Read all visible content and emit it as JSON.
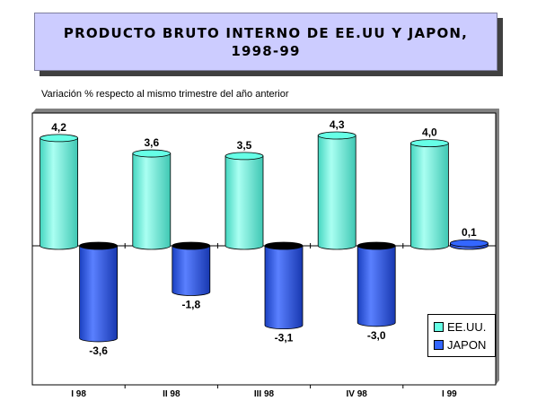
{
  "header": {
    "title_line1": "PRODUCTO BRUTO INTERNO DE EE.UU Y JAPON,",
    "title_line2": "1998-99",
    "subtitle": "Variación % respecto al mismo trimestre del año anterior"
  },
  "colors": {
    "series_1": "#66ffe6",
    "series_2": "#3366ff",
    "title_background": "#ccccff"
  },
  "legend": {
    "placement": "bottom-right",
    "items": [
      "EE.UU.",
      "JAPON"
    ]
  },
  "chart_data": {
    "type": "bar",
    "style": "3d-cylinder",
    "title": "PRODUCTO BRUTO INTERNO DE EE.UU Y JAPON, 1998-99",
    "subtitle": "Variación % respecto al mismo trimestre del año anterior",
    "categories": [
      "I 98",
      "II 98",
      "III 98",
      "IV 98",
      "I 99"
    ],
    "series": [
      {
        "name": "EE.UU.",
        "values": [
          4.2,
          3.6,
          3.5,
          4.3,
          4.0
        ],
        "labels": [
          "4,2",
          "3,6",
          "3,5",
          "4,3",
          "4,0"
        ]
      },
      {
        "name": "JAPON",
        "values": [
          -3.6,
          -1.8,
          -3.1,
          -3.0,
          0.1
        ],
        "labels": [
          "-3,6",
          "-1,8",
          "-3,1",
          "-3,0",
          "0,1"
        ]
      }
    ],
    "ylim": [
      -4.5,
      4.8
    ],
    "grid": false
  }
}
